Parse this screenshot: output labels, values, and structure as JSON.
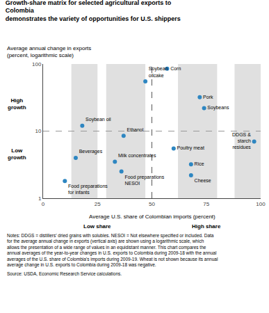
{
  "chart_data": {
    "type": "scatter",
    "title": "Growth-share matrix for selected agricultural exports to Colombia\ndemonstrates the variety of opportunities for U.S. shippers",
    "y_label": "Average annual change in exports\n(percent, logarithmic scale)",
    "x_label": "Average U.S. share of Colombian imports (percent)",
    "x_sublabels": [
      "Low share",
      "High share"
    ],
    "y_sublabels": [
      "High\ngrowth",
      "Low\ngrowth"
    ],
    "labels": [
      "Corn",
      "Soybean\noilcake",
      "Pork",
      "Soybeans",
      "Soybean oil",
      "Ethanol",
      "Poultry meat",
      "Rice",
      "Milk concentrates",
      "Food preparations\nNESOI",
      "Beverages",
      "Cheese",
      "Food preparations\nfor infants",
      "DDGS &\nstarch\nresidues"
    ],
    "x": [
      57,
      47,
      72,
      74,
      18,
      37,
      60,
      68,
      33,
      36,
      15,
      68,
      10,
      97
    ],
    "values": [
      85,
      55,
      32,
      22,
      12,
      8.5,
      5.5,
      3.2,
      3.5,
      2.5,
      4.0,
      2.2,
      1.8,
      7
    ],
    "color": "#2e86c1",
    "marker": "circle",
    "xlim": [
      0,
      100
    ],
    "ylim": [
      1,
      100
    ],
    "xticks": [
      0,
      25,
      50,
      75,
      100
    ],
    "yticks": [
      1,
      10,
      100
    ],
    "log": "y",
    "grid": false,
    "bands": [
      {
        "x0": 13,
        "x1": 25
      },
      {
        "x0": 29,
        "x1": 47
      },
      {
        "x0": 62,
        "x1": 80
      },
      {
        "x0": 88,
        "x1": 100
      }
    ],
    "band_color": "#e0e0e0",
    "dividers": [
      {
        "x": 50,
        "color": "#555555"
      },
      {
        "y": 10,
        "color": "#999999"
      }
    ],
    "notes": "Notes: DDGS = distillers’ dried grains with solubles. NESOI = Not elsewhere specified or included. Data for the average annual change in exports (vertical axis) are shown using a logarithmic scale, which allows the presentation of a wide range of values in an equidistant manner. This chart compares the annual averages of the year-to-year changes in U.S. exports to Colombia during 2009-18 with the annual averages of the U.S. share of Colombia’s imports during 2009-19. Wheat is not shown because its annual average change in U.S. exports to Colombia during 2009-18 was negative.",
    "source": "Source: USDA, Economic Research Service calculations."
  }
}
